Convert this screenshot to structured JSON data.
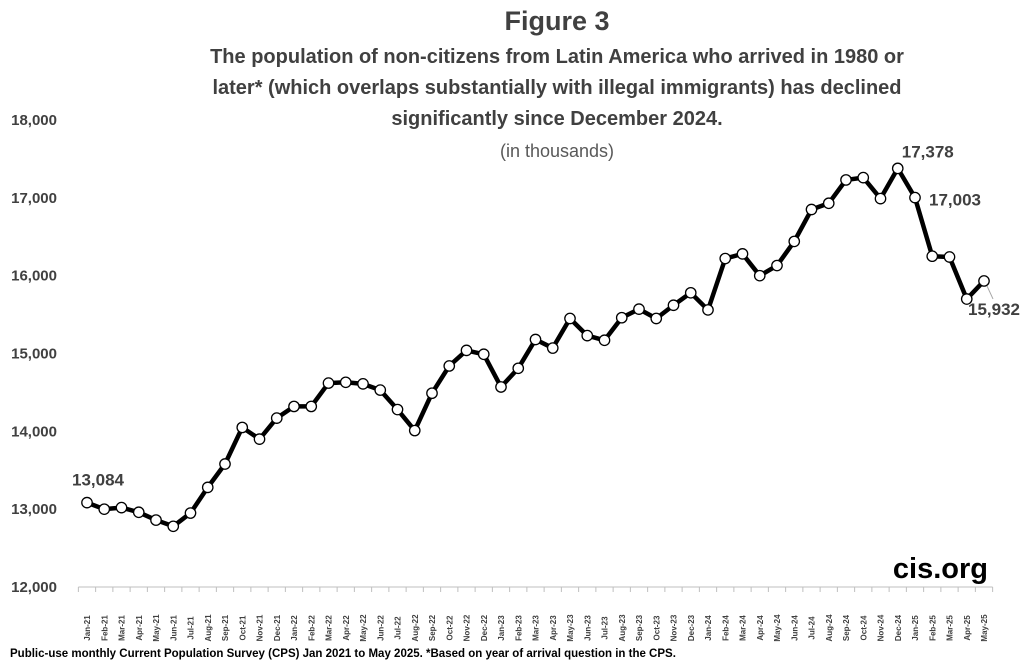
{
  "figure_label": "Figure 3",
  "subtitle": "(in thousands)",
  "brand": "cis.org",
  "footnote": "Public-use monthly Current Population Survey (CPS) Jan 2021 to May 2025.  *Based on year of arrival question in the CPS.",
  "chart_data": {
    "type": "line",
    "title": "The population of non-citizens from Latin America who arrived in 1980 or later* (which overlaps substantially with illegal immigrants) has declined significantly since December 2024.",
    "title_lines": [
      "The population of non-citizens from Latin America who arrived in 1980 or",
      "later* (which overlaps substantially with illegal immigrants) has declined",
      "significantly since December 2024."
    ],
    "ylim": [
      12000,
      18000
    ],
    "yticks": [
      "12,000",
      "13,000",
      "14,000",
      "15,000",
      "16,000",
      "17,000",
      "18,000"
    ],
    "ytick_values": [
      12000,
      13000,
      14000,
      15000,
      16000,
      17000,
      18000
    ],
    "grid": false,
    "legend": "none",
    "categories": [
      "Jan-21",
      "Feb-21",
      "Mar-21",
      "Apr-21",
      "May-21",
      "Jun-21",
      "Jul-21",
      "Aug-21",
      "Sep-21",
      "Oct-21",
      "Nov-21",
      "Dec-21",
      "Jan-22",
      "Feb-22",
      "Mar-22",
      "Apr-22",
      "May-22",
      "Jun-22",
      "Jul-22",
      "Aug-22",
      "Sep-22",
      "Oct-22",
      "Nov-22",
      "Dec-22",
      "Jan-23",
      "Feb-23",
      "Mar-23",
      "Apr-23",
      "May-23",
      "Jun-23",
      "Jul-23",
      "Aug-23",
      "Sep-23",
      "Oct-23",
      "Nov-23",
      "Dec-23",
      "Jan-24",
      "Feb-24",
      "Mar-24",
      "Apr-24",
      "May-24",
      "Jun-24",
      "Jul-24",
      "Aug-24",
      "Sep-24",
      "Oct-24",
      "Nov-24",
      "Dec-24",
      "Jan-25",
      "Feb-25",
      "Mar-25",
      "Apr-25",
      "May-25"
    ],
    "values": [
      13084,
      13000,
      13020,
      12960,
      12860,
      12780,
      12950,
      13280,
      13580,
      14050,
      13900,
      14170,
      14320,
      14320,
      14620,
      14630,
      14610,
      14530,
      14280,
      14010,
      14490,
      14840,
      15040,
      14990,
      14570,
      14810,
      15180,
      15070,
      15450,
      15230,
      15170,
      15460,
      15570,
      15450,
      15620,
      15780,
      15560,
      16220,
      16280,
      16000,
      16130,
      16440,
      16850,
      16930,
      17230,
      17260,
      16990,
      17378,
      17003,
      16250,
      16240,
      15700,
      15932
    ],
    "data_labels": [
      {
        "category": "Jan-21",
        "text": "13,084"
      },
      {
        "category": "Dec-24",
        "text": "17,378"
      },
      {
        "category": "Jan-25",
        "text": "17,003"
      },
      {
        "category": "May-25",
        "text": "15,932"
      }
    ],
    "line_color": "#000000",
    "marker_fill": "#ffffff"
  }
}
